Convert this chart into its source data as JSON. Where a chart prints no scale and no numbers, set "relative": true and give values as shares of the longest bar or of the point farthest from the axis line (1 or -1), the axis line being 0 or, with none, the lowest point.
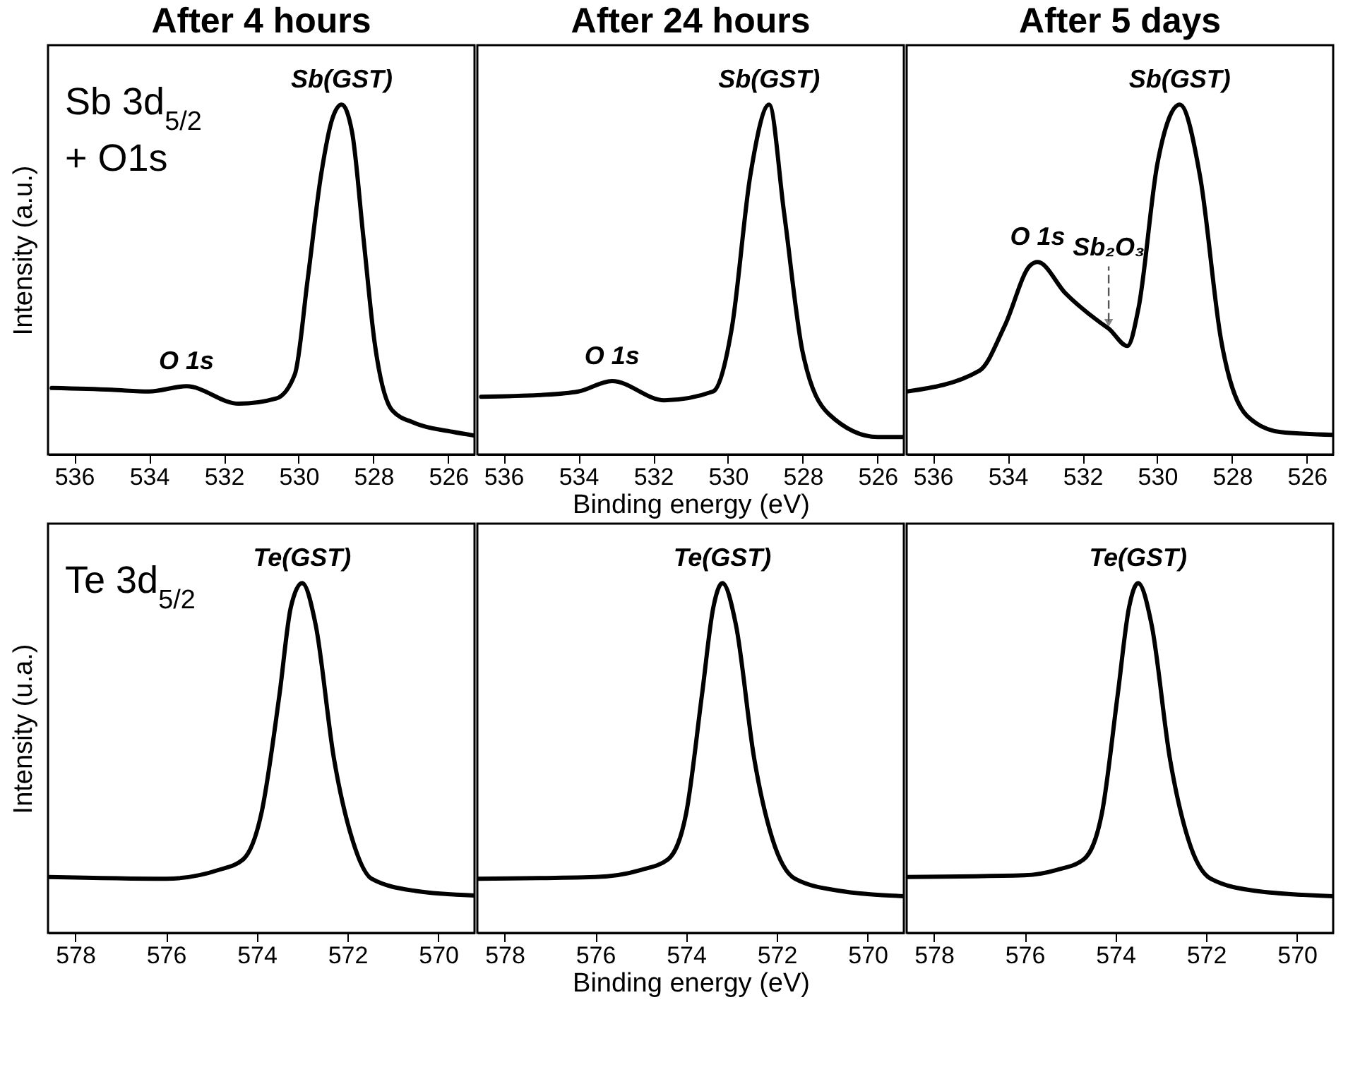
{
  "chart_data": [
    {
      "type": "line",
      "title": "After 4 hours",
      "ylabel": "Intensity (a.u.)",
      "relative": true,
      "tick_labels": "x",
      "xlim": [
        536.7,
        525.3
      ],
      "xticks": [
        536,
        534,
        532,
        530,
        528,
        526
      ],
      "x": [
        536.6,
        535,
        534,
        533,
        531.6,
        530.6,
        530.1,
        529.76,
        529.4,
        529.1,
        528.85,
        528.57,
        528.27,
        527.97,
        527.5,
        526.9,
        525.9,
        525.3
      ],
      "series": [
        {
          "color": "#000000",
          "values": [
            0.19,
            0.185,
            0.18,
            0.195,
            0.145,
            0.16,
            0.23,
            0.5,
            0.8,
            0.96,
            1,
            0.92,
            0.62,
            0.32,
            0.126,
            0.09,
            0.065,
            0.054
          ]
        }
      ],
      "annotations": [
        "Sb 3d$_{5/2}$",
        "+ O1s",
        {
          "text": "Sb(GST)",
          "x": 528.85,
          "y": 1
        },
        {
          "text": "O 1s",
          "x": 533,
          "y": 0.195
        }
      ]
    },
    {
      "type": "line",
      "title": "After 24 hours",
      "xlabel": "Binding energy (eV)",
      "relative": true,
      "tick_labels": "x",
      "xlim": [
        536.7,
        525.3
      ],
      "xticks": [
        536,
        534,
        532,
        530,
        528,
        526
      ],
      "x": [
        536.6,
        535,
        534,
        533.1,
        531.7,
        530.4,
        529.9,
        529.4,
        528.9,
        528.5,
        528,
        527.3,
        526,
        525.3
      ],
      "series": [
        {
          "color": "#000000",
          "values": [
            0.165,
            0.17,
            0.18,
            0.21,
            0.155,
            0.18,
            0.36,
            0.8,
            1,
            0.69,
            0.29,
            0.115,
            0.05,
            0.05
          ]
        }
      ],
      "annotations": [
        {
          "text": "Sb(GST)",
          "x": 528.9,
          "y": 1
        },
        {
          "text": "O 1s",
          "x": 533.1,
          "y": 0.21
        }
      ]
    },
    {
      "type": "line",
      "title": "After 5 days",
      "relative": true,
      "tick_labels": "x",
      "xlim": [
        536.7,
        525.3
      ],
      "xticks": [
        536,
        534,
        532,
        530,
        528,
        526
      ],
      "x": [
        536.7,
        534.75,
        534.07,
        533.4,
        533.2,
        532.45,
        531.5,
        531.3,
        530.8,
        530.5,
        530,
        529.4,
        528.85,
        528.3,
        527.6,
        526.7,
        525.3
      ],
      "series": [
        {
          "color": "#000000",
          "values": [
            0.18,
            0.24,
            0.37,
            0.54,
            0.55,
            0.46,
            0.375,
            0.36,
            0.31,
            0.42,
            0.83,
            1,
            0.79,
            0.33,
            0.11,
            0.064,
            0.056
          ]
        }
      ],
      "annotations": [
        {
          "text": "Sb(GST)",
          "x": 529.4,
          "y": 1
        },
        {
          "text": "O 1s",
          "x": 533.2,
          "y": 0.55
        },
        {
          "text": "Sb₂O₃",
          "x": 531.3,
          "y": 0.36
        }
      ]
    },
    {
      "type": "line",
      "ylabel": "Intensity (u.a.)",
      "relative": true,
      "tick_labels": "x",
      "xlim": [
        578.6,
        569.2
      ],
      "xticks": [
        578,
        576,
        574,
        572,
        570
      ],
      "x": [
        578.6,
        576,
        574.84,
        574.3,
        573.9,
        573.5,
        573.25,
        573,
        572.7,
        572.3,
        571.9,
        571.47,
        570.5,
        569.2
      ],
      "series": [
        {
          "color": "#000000",
          "values": [
            0.16,
            0.155,
            0.18,
            0.21,
            0.34,
            0.68,
            0.93,
            1,
            0.88,
            0.5,
            0.27,
            0.155,
            0.12,
            0.107
          ]
        }
      ],
      "annotations": [
        "Te 3d$_{5/2}$",
        {
          "text": "Te(GST)",
          "x": 573,
          "y": 1
        }
      ]
    },
    {
      "type": "line",
      "xlabel": "Binding energy (eV)",
      "relative": true,
      "tick_labels": "x",
      "xlim": [
        578.6,
        569.2
      ],
      "xticks": [
        578,
        576,
        574,
        572,
        570
      ],
      "x": [
        578.6,
        576,
        575,
        574.4,
        574,
        573.65,
        573.4,
        573.2,
        572.9,
        572.5,
        572.1,
        571.6,
        570.6,
        569.2
      ],
      "series": [
        {
          "color": "#000000",
          "values": [
            0.155,
            0.16,
            0.18,
            0.21,
            0.34,
            0.68,
            0.93,
            1,
            0.88,
            0.5,
            0.27,
            0.155,
            0.12,
            0.105
          ]
        }
      ],
      "annotations": [
        {
          "text": "Te(GST)",
          "x": 573.2,
          "y": 1
        }
      ]
    },
    {
      "type": "line",
      "relative": true,
      "tick_labels": "x",
      "xlim": [
        578.6,
        569.2
      ],
      "xticks": [
        578,
        576,
        574,
        572,
        570
      ],
      "x": [
        578.6,
        576,
        575.3,
        574.7,
        574.3,
        573.95,
        573.7,
        573.5,
        573.2,
        572.8,
        572.4,
        571.9,
        570.9,
        569.2
      ],
      "series": [
        {
          "color": "#000000",
          "values": [
            0.16,
            0.165,
            0.18,
            0.21,
            0.34,
            0.68,
            0.93,
            1,
            0.88,
            0.5,
            0.27,
            0.155,
            0.12,
            0.105
          ]
        }
      ],
      "annotations": [
        {
          "text": "Te(GST)",
          "x": 573.5,
          "y": 1
        }
      ]
    }
  ]
}
